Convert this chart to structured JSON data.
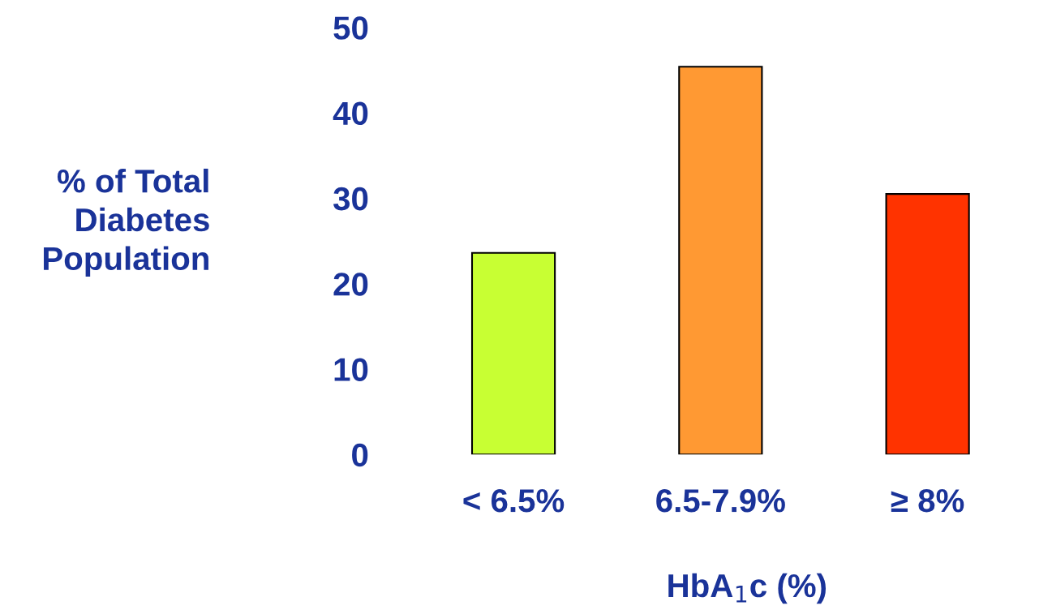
{
  "chart_data": {
    "type": "bar",
    "categories": [
      "< 6.5%",
      "6.5-7.9%",
      "≥ 8%"
    ],
    "values": [
      23.6,
      45.4,
      30.5
    ],
    "colors": [
      "#c8ff33",
      "#ff9933",
      "#ff3300"
    ],
    "ylabel": "% of Total\nDiabetes\nPopulation",
    "xlabel": "HbA$_{1}$c (%)",
    "ylim": [
      0,
      50
    ],
    "yticks": [
      0,
      10,
      20,
      30,
      40,
      50
    ],
    "grid": false,
    "legend": false
  }
}
